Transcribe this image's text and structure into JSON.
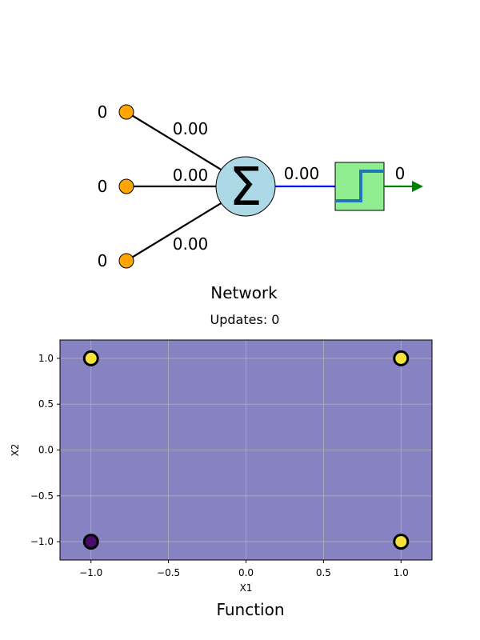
{
  "network": {
    "title": "Network",
    "inputs": [
      {
        "value": "0",
        "weight": "0.00"
      },
      {
        "value": "0",
        "weight": "0.00"
      },
      {
        "value": "0",
        "weight": "0.00"
      }
    ],
    "sum_symbol": "Σ",
    "sum_output": "0.00",
    "activation_output": "0"
  },
  "updates_label": "Updates: 0",
  "function_title": "Function",
  "chart_data": {
    "type": "scatter",
    "title": "",
    "xlabel": "X1",
    "ylabel": "X2",
    "xlim": [
      -1.2,
      1.2
    ],
    "ylim": [
      -1.2,
      1.2
    ],
    "xticks": [
      -1.0,
      -0.5,
      0.0,
      0.5,
      1.0
    ],
    "yticks": [
      -1.0,
      -0.5,
      0.0,
      0.5,
      1.0
    ],
    "xtick_labels": [
      "−1.0",
      "−0.5",
      "0.0",
      "0.5",
      "1.0"
    ],
    "ytick_labels": [
      "−1.0",
      "−0.5",
      "0.0",
      "0.5",
      "1.0"
    ],
    "grid": true,
    "background_color": "#8783c2",
    "points": [
      {
        "x": -1,
        "y": 1,
        "class": 1,
        "color": "#f5e33a"
      },
      {
        "x": 1,
        "y": 1,
        "class": 1,
        "color": "#f5e33a"
      },
      {
        "x": -1,
        "y": -1,
        "class": 0,
        "color": "#4a0c6b"
      },
      {
        "x": 1,
        "y": -1,
        "class": 1,
        "color": "#f5e33a"
      }
    ]
  },
  "colors": {
    "input_node": "#ffa500",
    "sum_node": "#add8e6",
    "activation_box": "#90ee90",
    "step_line": "#1f77b4",
    "sum_to_activation": "#0000ff",
    "output_arrow": "#008000"
  }
}
